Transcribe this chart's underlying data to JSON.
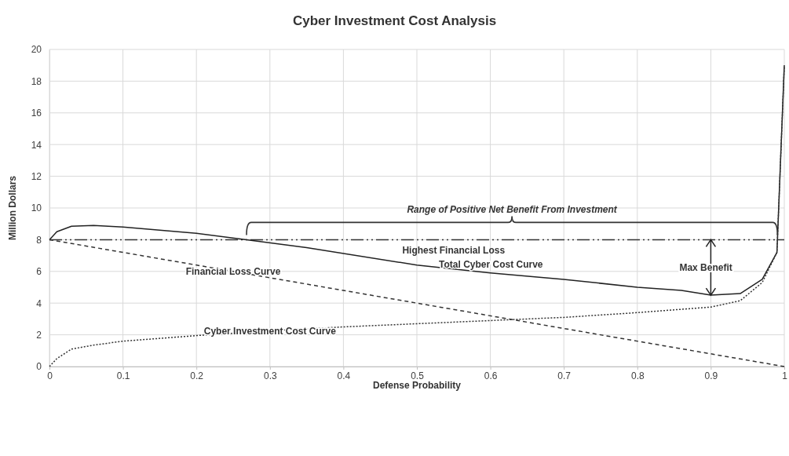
{
  "chart_data": {
    "type": "line",
    "title": "Cyber Investment Cost Analysis",
    "xlabel": "Defense Probability",
    "ylabel": "Million Dollars",
    "xlim": [
      0,
      1
    ],
    "xticks": [
      0,
      0.1,
      0.2,
      0.3,
      0.4,
      0.5,
      0.6,
      0.7,
      0.8,
      0.9,
      1
    ],
    "ylim": [
      0,
      20
    ],
    "yticks": [
      0,
      2,
      4,
      6,
      8,
      10,
      12,
      14,
      16,
      18,
      20
    ],
    "grid": true,
    "legend": false,
    "marker": "none",
    "series": [
      {
        "name": "Total Cyber Cost Curve",
        "color": "#222222",
        "line_style": "solid",
        "x": [
          0,
          0.01,
          0.03,
          0.06,
          0.1,
          0.2,
          0.26,
          0.35,
          0.5,
          0.6,
          0.7,
          0.8,
          0.86,
          0.9,
          0.94,
          0.97,
          0.99,
          1
        ],
        "values": [
          8,
          8.5,
          8.85,
          8.9,
          8.8,
          8.4,
          8.05,
          7.5,
          6.4,
          5.9,
          5.5,
          5.0,
          4.8,
          4.5,
          4.6,
          5.5,
          7.2,
          19
        ]
      },
      {
        "name": "Financial Loss Curve",
        "color": "#333333",
        "line_style": "dashed",
        "x": [
          0,
          1
        ],
        "values": [
          8,
          0
        ]
      },
      {
        "name": "Cyber Investment Cost Curve",
        "color": "#333333",
        "line_style": "dotted",
        "x": [
          0,
          0.01,
          0.03,
          0.06,
          0.1,
          0.2,
          0.3,
          0.4,
          0.5,
          0.6,
          0.7,
          0.8,
          0.9,
          0.94,
          0.97,
          0.99,
          1
        ],
        "values": [
          0,
          0.5,
          1.1,
          1.35,
          1.6,
          1.95,
          2.25,
          2.5,
          2.7,
          2.9,
          3.1,
          3.4,
          3.75,
          4.15,
          5.3,
          7.2,
          19
        ]
      }
    ],
    "ref_lines": [
      {
        "axis": "y",
        "value": 8,
        "label": "Highest Financial Loss",
        "color": "#333333",
        "line_style": "dashed"
      }
    ],
    "annotations": [
      "Range of Positive Net Benefit From Investment",
      "Max Benefit"
    ]
  }
}
